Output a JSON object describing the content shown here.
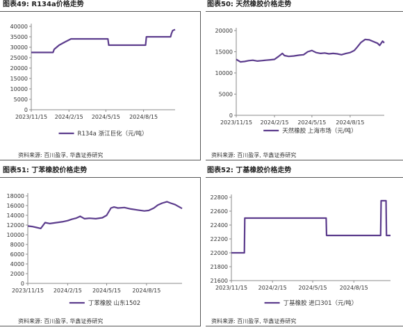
{
  "colors": {
    "series": "#5b3b8c",
    "axis": "#8a8a8a",
    "text": "#333333"
  },
  "panels": [
    {
      "title": "图表49:  R134a价格走势",
      "source": "资料来源:  百川盈孚,  华鑫证券研究",
      "chart_data": {
        "type": "line",
        "x_ticks": [
          "2023/11/15",
          "2024/2/15",
          "2024/5/15",
          "2024/8/15"
        ],
        "y_ticks": [
          0,
          5000,
          10000,
          15000,
          20000,
          25000,
          30000,
          35000,
          40000
        ],
        "ylim": [
          0,
          40000
        ],
        "xlim": [
          "2023/11/15",
          "2024/10/31"
        ],
        "legend": "R134a  浙江巨化（元/吨）",
        "legend_position": "bottom",
        "series": [
          {
            "name": "R134a  浙江巨化（元/吨）",
            "x": [
              "2023/11/15",
              "2024/1/7",
              "2024/1/10",
              "2024/1/22",
              "2024/2/5",
              "2024/2/20",
              "2024/3/20",
              "2024/5/20",
              "2024/5/22",
              "2024/6/10",
              "2024/7/20",
              "2024/8/20",
              "2024/8/22",
              "2024/9/10",
              "2024/9/25",
              "2024/10/20",
              "2024/10/22",
              "2024/10/25",
              "2024/10/31"
            ],
            "values": [
              27500,
              27500,
              29000,
              31000,
              32500,
              34000,
              34000,
              34000,
              31000,
              31000,
              31000,
              31000,
              35000,
              35000,
              35000,
              35000,
              36500,
              38000,
              38500
            ]
          }
        ]
      }
    },
    {
      "title": "图表50:  天然橡胶价格走势",
      "source": "资料来源:  百川盈孚,  华鑫证券研究",
      "chart_data": {
        "type": "line",
        "x_ticks": [
          "2023/11/15",
          "2024/2/15",
          "2024/5/15",
          "2024/8/15"
        ],
        "y_ticks": [
          0,
          5000,
          10000,
          15000,
          20000
        ],
        "ylim": [
          0,
          20000
        ],
        "xlim": [
          "2023/11/15",
          "2024/11/5"
        ],
        "legend": "天然橡胶  上海市场（元/吨）",
        "legend_position": "bottom",
        "series": [
          {
            "name": "天然橡胶  上海市场（元/吨）",
            "x": [
              "2023/11/15",
              "2023/11/25",
              "2023/12/5",
              "2023/12/15",
              "2023/12/25",
              "2024/1/5",
              "2024/1/15",
              "2024/1/25",
              "2024/2/5",
              "2024/2/15",
              "2024/2/25",
              "2024/3/5",
              "2024/3/10",
              "2024/3/20",
              "2024/4/1",
              "2024/4/15",
              "2024/4/25",
              "2024/5/5",
              "2024/5/15",
              "2024/5/25",
              "2024/6/5",
              "2024/6/15",
              "2024/6/25",
              "2024/7/5",
              "2024/7/15",
              "2024/7/25",
              "2024/8/5",
              "2024/8/15",
              "2024/8/25",
              "2024/9/1",
              "2024/9/10",
              "2024/9/20",
              "2024/9/30",
              "2024/10/10",
              "2024/10/20",
              "2024/10/25",
              "2024/11/1",
              "2024/11/5"
            ],
            "values": [
              13200,
              12600,
              12700,
              12900,
              13000,
              12800,
              12900,
              13000,
              13100,
              13200,
              13900,
              14600,
              14100,
              13900,
              14000,
              14200,
              14300,
              15000,
              15300,
              14800,
              14600,
              14700,
              14500,
              14600,
              14500,
              14300,
              14600,
              14800,
              15300,
              16100,
              17200,
              17900,
              17800,
              17400,
              17000,
              16500,
              17500,
              17100
            ]
          }
        ]
      }
    },
    {
      "title": "图表51:  丁苯橡胶价格走势",
      "source": "资料来源:  百川盈孚,  华鑫证券研究",
      "chart_data": {
        "type": "line",
        "x_ticks": [
          "2023/11/15",
          "2024/2/15",
          "2024/5/15",
          "2024/8/15"
        ],
        "y_ticks": [
          0,
          2000,
          4000,
          6000,
          8000,
          10000,
          12000,
          14000,
          16000,
          18000
        ],
        "ylim": [
          0,
          18000
        ],
        "xlim": [
          "2023/11/15",
          "2024/11/5"
        ],
        "legend": "丁苯橡胶  山东1502",
        "legend_position": "bottom",
        "series": [
          {
            "name": "丁苯橡胶  山东1502",
            "x": [
              "2023/11/15",
              "2023/11/25",
              "2023/12/5",
              "2023/12/15",
              "2023/12/25",
              "2024/1/5",
              "2024/1/20",
              "2024/2/5",
              "2024/2/15",
              "2024/2/25",
              "2024/3/5",
              "2024/3/15",
              "2024/3/25",
              "2024/4/5",
              "2024/4/20",
              "2024/5/5",
              "2024/5/15",
              "2024/5/25",
              "2024/6/1",
              "2024/6/10",
              "2024/6/25",
              "2024/7/10",
              "2024/7/25",
              "2024/8/10",
              "2024/8/20",
              "2024/9/1",
              "2024/9/10",
              "2024/9/20",
              "2024/10/1",
              "2024/10/10",
              "2024/10/20",
              "2024/10/30",
              "2024/11/5"
            ],
            "values": [
              11800,
              11700,
              11500,
              11300,
              12500,
              12300,
              12500,
              12700,
              12900,
              13200,
              13400,
              13800,
              13300,
              13400,
              13300,
              13500,
              14000,
              15500,
              15700,
              15500,
              15600,
              15300,
              15100,
              14900,
              15000,
              15500,
              16100,
              16500,
              16800,
              16500,
              16200,
              15700,
              15400
            ]
          }
        ]
      }
    },
    {
      "title": "图表52:  丁基橡胶价格走势",
      "source": "资料来源:  百川盈孚,  华鑫证券研究",
      "chart_data": {
        "type": "line",
        "x_ticks": [
          "2023/11/15",
          "2024/2/15",
          "2024/5/15",
          "2024/8/15"
        ],
        "y_ticks": [
          21600,
          21800,
          22000,
          22200,
          22400,
          22600,
          22800
        ],
        "ylim": [
          21600,
          22800
        ],
        "xlim": [
          "2023/11/15",
          "2024/11/5"
        ],
        "legend": "丁基橡胶  进口301（元/吨）",
        "legend_position": "bottom",
        "series": [
          {
            "name": "丁基橡胶  进口301（元/吨）",
            "x": [
              "2023/11/15",
              "2023/12/14",
              "2023/12/15",
              "2024/6/14",
              "2024/6/15",
              "2024/10/14",
              "2024/10/15",
              "2024/10/26",
              "2024/10/27",
              "2024/11/5"
            ],
            "values": [
              22000,
              22000,
              22500,
              22500,
              22250,
              22250,
              22750,
              22750,
              22250,
              22250
            ]
          }
        ]
      }
    }
  ]
}
